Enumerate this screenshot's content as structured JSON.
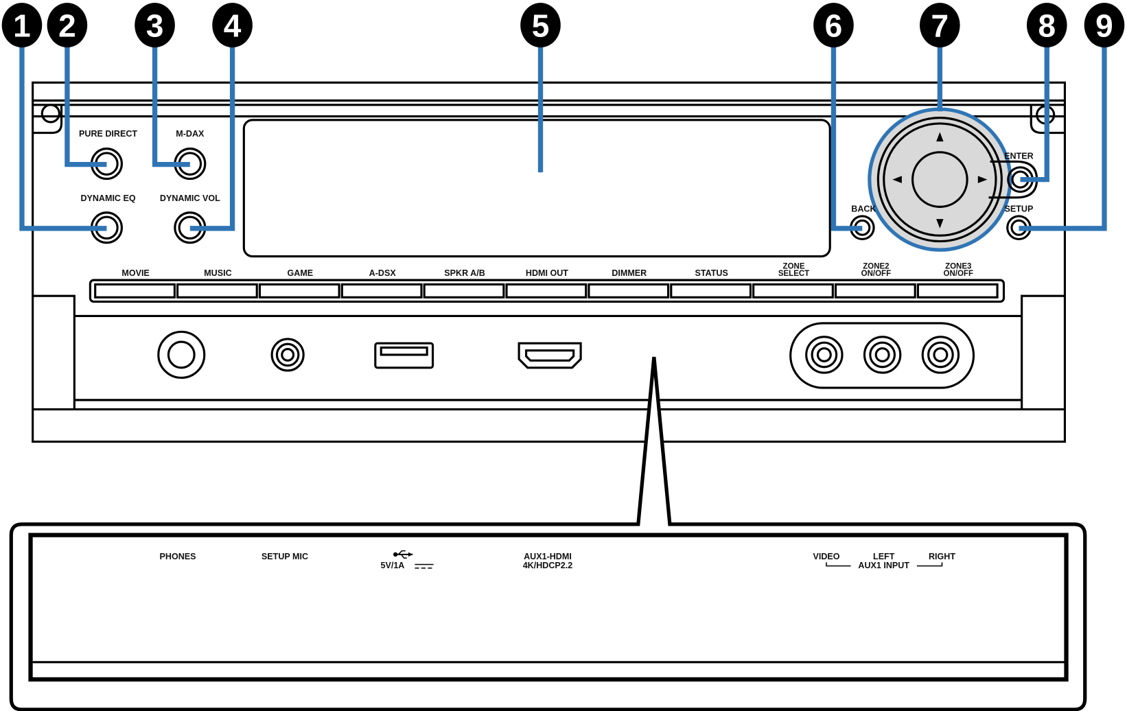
{
  "callouts": [
    "1",
    "2",
    "3",
    "4",
    "5",
    "6",
    "7",
    "8",
    "9"
  ],
  "leader_color": "#2f75b5",
  "knob_fill": "#d9d9d9",
  "top_buttons": {
    "pure_direct": "PURE DIRECT",
    "m_dax": "M-DAX",
    "dynamic_eq": "DYNAMIC EQ",
    "dynamic_vol": "DYNAMIC VOL",
    "back": "BACK",
    "enter": "ENTER",
    "setup": "SETUP"
  },
  "button_bar": [
    [
      "MOVIE"
    ],
    [
      "MUSIC"
    ],
    [
      "GAME"
    ],
    [
      "A-DSX"
    ],
    [
      "SPKR A/B"
    ],
    [
      "HDMI OUT"
    ],
    [
      "DIMMER"
    ],
    [
      "STATUS"
    ],
    [
      "ZONE",
      "SELECT"
    ],
    [
      "ZONE2",
      "ON/OFF"
    ],
    [
      "ZONE3",
      "ON/OFF"
    ]
  ],
  "detail_labels": {
    "phones": "PHONES",
    "setup_mic": "SETUP MIC",
    "usb_icon": "usb-icon",
    "usb_rating": "5V/1A",
    "aux_hdmi_1": "AUX1-HDMI",
    "aux_hdmi_2": "4K/HDCP2.2",
    "video": "VIDEO",
    "left": "LEFT",
    "right": "RIGHT",
    "aux_input": "AUX1 INPUT"
  }
}
